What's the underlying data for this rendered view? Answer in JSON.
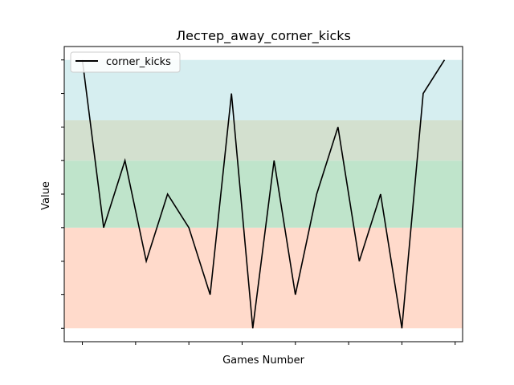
{
  "chart_data": {
    "type": "line",
    "title": "Лестер_away_corner_kicks",
    "xlabel": "Games Number",
    "ylabel": "Value",
    "x": [
      0,
      1,
      2,
      3,
      4,
      5,
      6,
      7,
      8,
      9,
      10,
      11,
      12,
      13,
      14,
      15,
      16,
      17
    ],
    "series": [
      {
        "name": "corner_kicks",
        "color": "#000000",
        "values": [
          8,
          3,
          5,
          2,
          4,
          3,
          1,
          7,
          0,
          5,
          1,
          4,
          6,
          2,
          4,
          0,
          7,
          8
        ]
      }
    ],
    "ylim": [
      -0.4,
      8.4
    ],
    "xlim": [
      -0.85,
      17.85
    ],
    "bands": [
      {
        "from": 0,
        "to": 3,
        "color": "#ffdacb"
      },
      {
        "from": 3,
        "to": 5,
        "color": "#bfe4cb"
      },
      {
        "from": 5,
        "to": 6.2,
        "color": "#d3e0cf"
      },
      {
        "from": 6.2,
        "to": 8,
        "color": "#d6eef0"
      }
    ],
    "x_ticks_count": 8,
    "y_ticks_count": 9,
    "tick_labels_visible": false,
    "grid": false,
    "legend": "top-left"
  }
}
